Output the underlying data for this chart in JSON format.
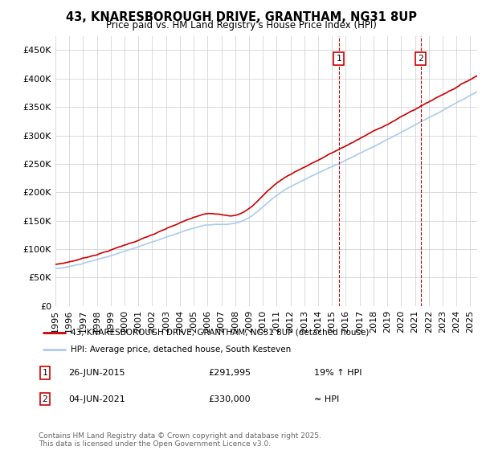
{
  "title_line1": "43, KNARESBOROUGH DRIVE, GRANTHAM, NG31 8UP",
  "title_line2": "Price paid vs. HM Land Registry's House Price Index (HPI)",
  "ylim": [
    0,
    475000
  ],
  "yticks": [
    0,
    50000,
    100000,
    150000,
    200000,
    250000,
    300000,
    350000,
    400000,
    450000
  ],
  "xlim_start": 1995.0,
  "xlim_end": 2025.5,
  "legend_line1": "43, KNARESBOROUGH DRIVE, GRANTHAM, NG31 8UP (detached house)",
  "legend_line2": "HPI: Average price, detached house, South Kesteven",
  "sale1_label": "1",
  "sale1_date": "26-JUN-2015",
  "sale1_price": "£291,995",
  "sale1_hpi": "19% ↑ HPI",
  "sale2_label": "2",
  "sale2_date": "04-JUN-2021",
  "sale2_price": "£330,000",
  "sale2_hpi": "≈ HPI",
  "footnote": "Contains HM Land Registry data © Crown copyright and database right 2025.\nThis data is licensed under the Open Government Licence v3.0.",
  "red_color": "#cc0000",
  "blue_color": "#aaccee",
  "marker1_x": 2015.49,
  "marker1_y": 291995,
  "marker2_x": 2021.42,
  "marker2_y": 330000,
  "background_color": "#ffffff",
  "grid_color": "#cccccc"
}
